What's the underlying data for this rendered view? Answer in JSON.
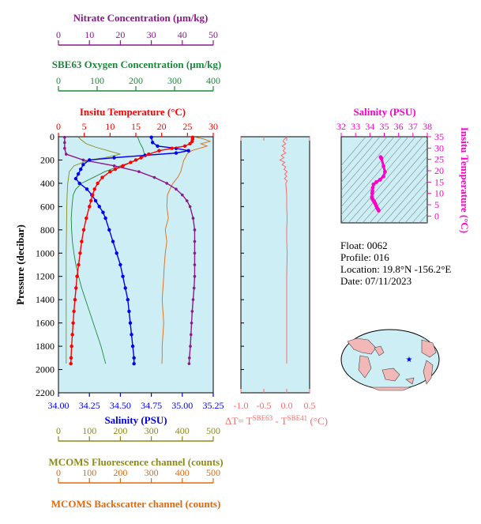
{
  "colors": {
    "nitrate": "#8b1a8b",
    "oxygen": "#1a8a3a",
    "temperature": "#ff0000",
    "salinity": "#0000ee",
    "fluorescence": "#8b8b1a",
    "backscatter": "#e06a10",
    "delta_t": "#ff6a6a",
    "ts": "#ff00cc",
    "plot_bg": "#cdeef5"
  },
  "info": {
    "float": "Float:  0062",
    "profile": "Profile:  016",
    "location": "Location:  19.8°N  -156.2°E",
    "date": "Date:  07/11/2023"
  },
  "chart_data": [
    {
      "type": "line",
      "id": "main-profile",
      "ylabel": "Pressure (decibar)",
      "ylim": [
        2200,
        0
      ],
      "yticks": [
        0,
        200,
        400,
        600,
        800,
        1000,
        1200,
        1400,
        1600,
        1800,
        2000,
        2200
      ],
      "grid": false,
      "axes": {
        "nitrate": {
          "label": "Nitrate Concentration (µm/kg)",
          "lim": [
            0,
            50
          ],
          "ticks": [
            0,
            10,
            20,
            30,
            40,
            50
          ]
        },
        "oxygen": {
          "label": "SBE63 Oxygen Concentration (µm/kg)",
          "lim": [
            0,
            400
          ],
          "ticks": [
            0,
            100,
            200,
            300,
            400
          ]
        },
        "temperature": {
          "label": "Insitu Temperature (°C)",
          "lim": [
            0,
            30
          ],
          "ticks": [
            0,
            5,
            10,
            15,
            20,
            25,
            30
          ]
        },
        "salinity": {
          "label": "Salinity (PSU)",
          "lim": [
            34.0,
            35.25
          ],
          "ticks": [
            "34.00",
            "34.25",
            "34.50",
            "34.75",
            "35.00",
            "35.25"
          ]
        },
        "fluorescence": {
          "label": "MCOMS Fluorescence channel (counts)",
          "lim": [
            0,
            500
          ],
          "ticks": [
            0,
            100,
            200,
            300,
            400,
            500
          ]
        },
        "backscatter": {
          "label": "MCOMS Backscatter channel (counts)",
          "lim": [
            0,
            500
          ],
          "ticks": [
            0,
            100,
            200,
            300,
            400,
            500
          ]
        }
      },
      "series": [
        {
          "key": "temperature",
          "pressure": [
            5,
            20,
            40,
            60,
            80,
            100,
            120,
            150,
            180,
            200,
            220,
            250,
            280,
            300,
            350,
            400,
            450,
            500,
            550,
            600,
            700,
            800,
            900,
            1000,
            1100,
            1200,
            1300,
            1400,
            1500,
            1600,
            1700,
            1800,
            1900,
            1950
          ],
          "values": [
            26.0,
            26.0,
            25.9,
            25.5,
            24.5,
            22.0,
            19.5,
            17.5,
            16.0,
            15.0,
            14.0,
            12.5,
            11.0,
            10.0,
            8.5,
            7.6,
            7.0,
            6.6,
            6.3,
            6.0,
            5.4,
            4.9,
            4.5,
            4.2,
            3.9,
            3.6,
            3.4,
            3.2,
            3.0,
            2.85,
            2.7,
            2.55,
            2.45,
            2.4
          ]
        },
        {
          "key": "salinity",
          "pressure": [
            5,
            50,
            80,
            100,
            120,
            140,
            160,
            180,
            200,
            240,
            280,
            320,
            360,
            400,
            450,
            500,
            550,
            600,
            650,
            700,
            800,
            900,
            1000,
            1100,
            1200,
            1300,
            1400,
            1500,
            1600,
            1700,
            1800,
            1900,
            1950
          ],
          "values": [
            34.75,
            34.76,
            34.8,
            34.95,
            35.05,
            34.95,
            34.7,
            34.45,
            34.25,
            34.2,
            34.18,
            34.16,
            34.14,
            34.17,
            34.23,
            34.27,
            34.3,
            34.33,
            34.36,
            34.38,
            34.41,
            34.44,
            34.47,
            34.5,
            34.52,
            34.54,
            34.56,
            34.57,
            34.58,
            34.59,
            34.6,
            34.61,
            34.61
          ]
        },
        {
          "key": "nitrate",
          "pressure": [
            5,
            50,
            100,
            150,
            200,
            250,
            300,
            350,
            400,
            450,
            500,
            550,
            600,
            700,
            800,
            900,
            1000,
            1100,
            1200,
            1300,
            1400,
            1500,
            1600,
            1700,
            1800,
            1900,
            1950
          ],
          "values": [
            2,
            2,
            2,
            2.5,
            8,
            18,
            26,
            31,
            35,
            38,
            40,
            41.5,
            42.5,
            43.5,
            44,
            44,
            44,
            44,
            44,
            43.8,
            43.5,
            43.2,
            43,
            42.8,
            42.6,
            42.3,
            42.2
          ]
        },
        {
          "key": "oxygen",
          "pressure": [
            5,
            50,
            100,
            150,
            200,
            250,
            300,
            350,
            400,
            450,
            500,
            600,
            700,
            800,
            900,
            1000,
            1100,
            1200,
            1300,
            1400,
            1500,
            1600,
            1700,
            1800,
            1900,
            1950
          ],
          "values": [
            205,
            210,
            218,
            222,
            205,
            160,
            120,
            90,
            60,
            45,
            38,
            35,
            33,
            34,
            36,
            40,
            45,
            52,
            60,
            70,
            80,
            90,
            100,
            110,
            118,
            122
          ]
        },
        {
          "key": "fluorescence",
          "pressure": [
            5,
            30,
            60,
            90,
            120,
            150,
            180,
            200,
            250,
            300,
            400,
            500,
            600,
            800,
            1000,
            1200,
            1400,
            1600,
            1800,
            1900,
            1950
          ],
          "values": [
            65,
            75,
            90,
            120,
            160,
            200,
            150,
            100,
            50,
            35,
            30,
            28,
            27,
            26,
            25,
            25,
            25,
            25,
            25,
            25,
            25
          ]
        },
        {
          "key": "backscatter",
          "pressure": [
            5,
            20,
            40,
            60,
            80,
            100,
            120,
            150,
            180,
            200,
            250,
            300,
            350,
            400,
            450,
            500,
            600,
            700,
            800,
            900,
            1000,
            1100,
            1200,
            1400,
            1600,
            1800,
            1900,
            1950
          ],
          "values": [
            445,
            470,
            490,
            460,
            480,
            455,
            430,
            415,
            410,
            405,
            400,
            395,
            385,
            370,
            360,
            352,
            350,
            355,
            345,
            350,
            345,
            342,
            340,
            335,
            340,
            335,
            335,
            334
          ]
        }
      ]
    },
    {
      "type": "line",
      "id": "delta-t",
      "xlabel_parts": [
        "ΔT= T",
        "SBE63",
        " - T",
        "SBE41",
        " (°C)"
      ],
      "xlim": [
        -1.0,
        0.5
      ],
      "xticks": [
        "-1.0",
        "-0.5",
        "0.0",
        "0.5"
      ],
      "ylim": [
        2200,
        0
      ],
      "series": [
        {
          "name": "delta_t",
          "pressure": [
            5,
            20,
            40,
            60,
            80,
            100,
            120,
            140,
            160,
            180,
            200,
            220,
            240,
            260,
            280,
            300,
            320,
            340,
            360,
            380,
            400,
            450,
            500,
            600,
            700,
            800,
            900,
            1000,
            1200,
            1400,
            1600,
            1800,
            1950
          ],
          "values": [
            0.0,
            -0.05,
            -0.08,
            -0.02,
            -0.1,
            -0.03,
            -0.08,
            -0.02,
            -0.12,
            -0.06,
            -0.15,
            -0.04,
            -0.1,
            -0.02,
            -0.06,
            0.01,
            -0.04,
            0.0,
            -0.05,
            0.01,
            -0.02,
            -0.01,
            0.0,
            0.0,
            0.01,
            0.0,
            0.0,
            0.01,
            0.0,
            0.0,
            0.0,
            0.0,
            0.0
          ]
        }
      ]
    },
    {
      "type": "line",
      "id": "ts-diagram",
      "xlabel": "Salinity (PSU)",
      "ylabel": "Insitu Temperature (°C)",
      "xlim": [
        32,
        38
      ],
      "ylim": [
        -3,
        35
      ],
      "xticks": [
        32,
        33,
        34,
        35,
        36,
        37,
        38
      ],
      "yticks": [
        0,
        5,
        10,
        15,
        20,
        25,
        30,
        35
      ],
      "series": [
        {
          "name": "ts",
          "salinity": [
            34.75,
            34.8,
            34.95,
            35.05,
            34.95,
            34.7,
            34.45,
            34.25,
            34.2,
            34.18,
            34.16,
            34.14,
            34.17,
            34.23,
            34.27,
            34.3,
            34.33,
            34.38,
            34.44,
            34.5,
            34.56,
            34.61
          ],
          "temperature": [
            26.0,
            25.5,
            22.0,
            19.5,
            17.5,
            16.0,
            15.0,
            14.0,
            12.5,
            11.0,
            10.0,
            8.5,
            7.6,
            7.0,
            6.6,
            6.3,
            6.0,
            5.4,
            4.5,
            3.6,
            3.0,
            2.4
          ]
        }
      ]
    }
  ]
}
